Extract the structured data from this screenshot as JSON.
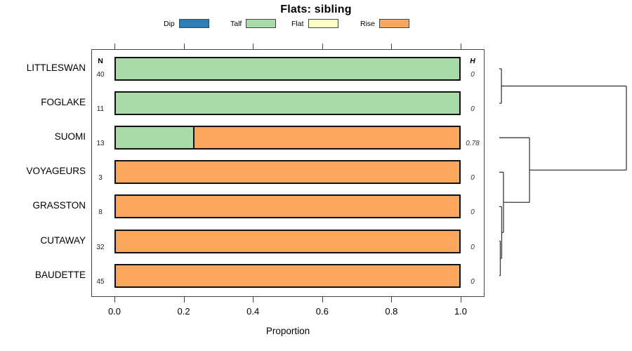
{
  "title": "Flats: sibling",
  "legend": {
    "items": [
      {
        "label": "Dip",
        "color": "#2E7EBB"
      },
      {
        "label": "Talf",
        "color": "#A8DBA8"
      },
      {
        "label": "Flat",
        "color": "#FFFFC8"
      },
      {
        "label": "Rise",
        "color": "#FAA65C"
      }
    ]
  },
  "columns": {
    "n_header": "N",
    "h_header": "H"
  },
  "xaxis": {
    "label": "Proportion",
    "ticks": [
      "0.0",
      "0.2",
      "0.4",
      "0.6",
      "0.8",
      "1.0"
    ]
  },
  "chart_data": {
    "type": "bar",
    "orientation": "horizontal",
    "stacked": true,
    "title": "Flats: sibling",
    "xlabel": "Proportion",
    "xlim": [
      0.0,
      1.0
    ],
    "grid": false,
    "legend_position": "top",
    "categories": [
      "Dip",
      "Talf",
      "Flat",
      "Rise"
    ],
    "rows": [
      {
        "label": "LITTLESWAN",
        "n": "40",
        "h": "0",
        "segments": [
          {
            "category": "Talf",
            "value": 1.0
          }
        ]
      },
      {
        "label": "FOGLAKE",
        "n": "11",
        "h": "0",
        "segments": [
          {
            "category": "Talf",
            "value": 1.0
          }
        ]
      },
      {
        "label": "SUOMI",
        "n": "13",
        "h": "0.78",
        "segments": [
          {
            "category": "Talf",
            "value": 0.23
          },
          {
            "category": "Rise",
            "value": 0.77
          }
        ]
      },
      {
        "label": "VOYAGEURS",
        "n": "3",
        "h": "0",
        "segments": [
          {
            "category": "Rise",
            "value": 1.0
          }
        ]
      },
      {
        "label": "GRASSTON",
        "n": "8",
        "h": "0",
        "segments": [
          {
            "category": "Rise",
            "value": 1.0
          }
        ]
      },
      {
        "label": "CUTAWAY",
        "n": "32",
        "h": "0",
        "segments": [
          {
            "category": "Rise",
            "value": 1.0
          }
        ]
      },
      {
        "label": "BAUDETTE",
        "n": "45",
        "h": "0",
        "segments": [
          {
            "category": "Rise",
            "value": 1.0
          }
        ]
      }
    ],
    "dendrogram": {
      "leaves": [
        "LITTLESWAN",
        "FOGLAKE",
        "SUOMI",
        "VOYAGEURS",
        "GRASSTON",
        "CUTAWAY",
        "BAUDETTE"
      ],
      "merges": [
        {
          "id": "M1",
          "children": [
            "L0",
            "L1"
          ],
          "height": 0.017
        },
        {
          "id": "M2",
          "children": [
            "L5",
            "L6"
          ],
          "height": 0.008
        },
        {
          "id": "M3",
          "children": [
            "L4",
            "M2"
          ],
          "height": 0.019
        },
        {
          "id": "M4",
          "children": [
            "L3",
            "M3"
          ],
          "height": 0.033
        },
        {
          "id": "M5",
          "children": [
            "L2",
            "M4"
          ],
          "height": 0.238
        },
        {
          "id": "M6",
          "children": [
            "M1",
            "M5"
          ],
          "height": 1.0
        }
      ]
    }
  }
}
